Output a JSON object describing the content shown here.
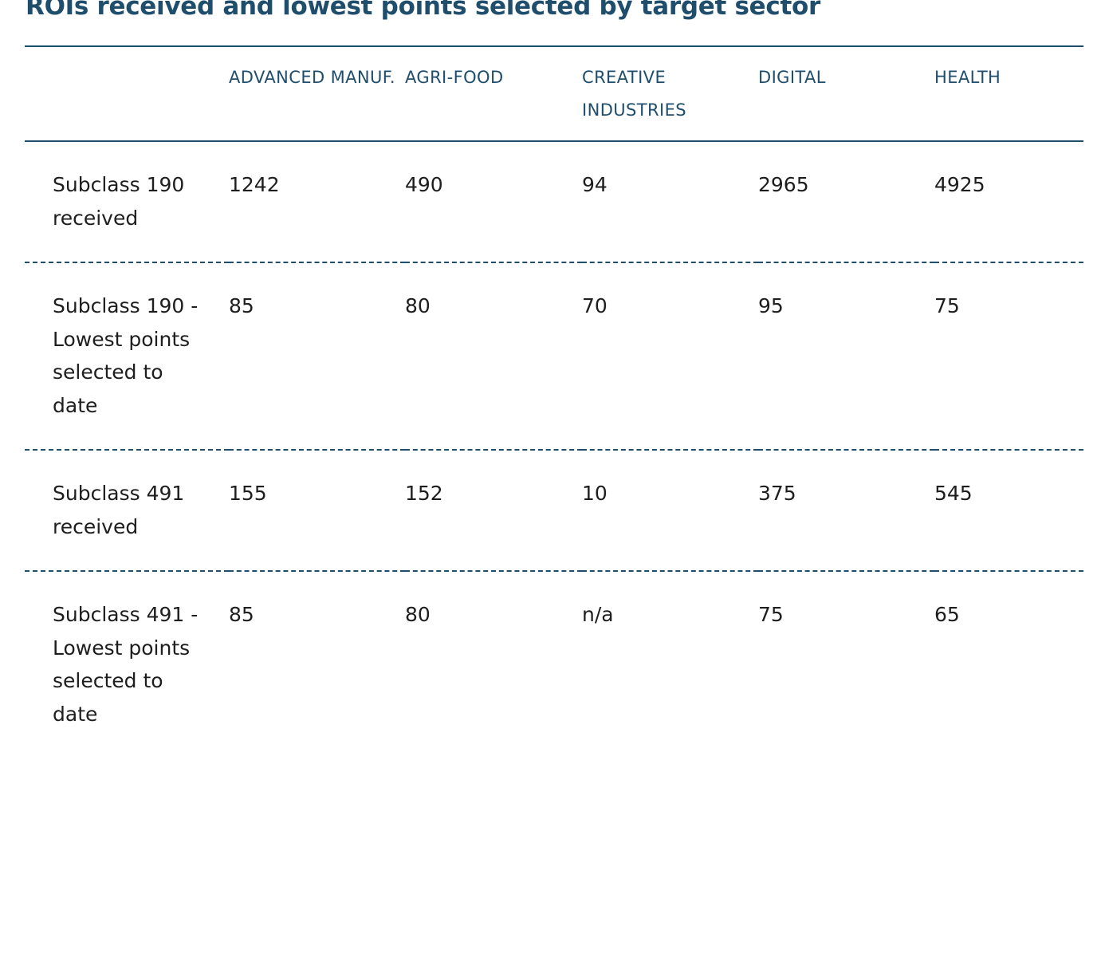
{
  "title": "ROIs received and lowest points selected by target sector",
  "table": {
    "headers": [
      "",
      "ADVANCED MANUF.",
      "AGRI-FOOD",
      "CREATIVE INDUSTRIES",
      "DIGITAL",
      "HEALTH"
    ],
    "rows": [
      {
        "label": "Subclass 190 received",
        "values": [
          "1242",
          "490",
          "94",
          "2965",
          "4925"
        ]
      },
      {
        "label": "Subclass 190 - Lowest points selected to date",
        "values": [
          "85",
          "80",
          "70",
          "95",
          "75"
        ]
      },
      {
        "label": "Subclass 491 received",
        "values": [
          "155",
          "152",
          "10",
          "375",
          "545"
        ]
      },
      {
        "label": "Subclass 491 - Lowest points selected to date",
        "values": [
          "85",
          "80",
          "n/a",
          "75",
          "65"
        ]
      }
    ]
  }
}
